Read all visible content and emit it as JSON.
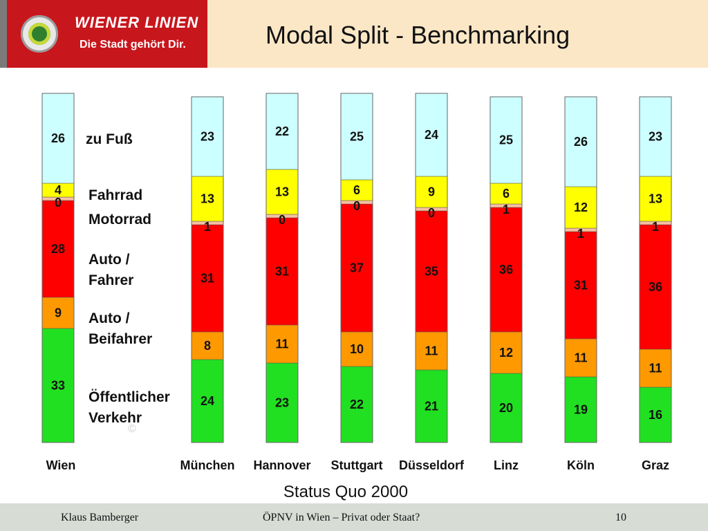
{
  "header": {
    "brand": "WIENER LINIEN",
    "slogan": "Die Stadt gehört Dir.",
    "title": "Modal Split - Benchmarking"
  },
  "chart_data": {
    "type": "bar",
    "stacked": true,
    "title": "Modal Split - Benchmarking",
    "subtitle": "Status Quo 2000",
    "categories": [
      "Wien",
      "München",
      "Hannover",
      "Stuttgart",
      "Düsseldorf",
      "Linz",
      "Köln",
      "Graz"
    ],
    "series": [
      {
        "name": "Öffentlicher Verkehr",
        "color": "#21e021",
        "values": [
          33,
          24,
          23,
          22,
          21,
          20,
          19,
          16
        ]
      },
      {
        "name": "Auto / Beifahrer",
        "color": "#ff9900",
        "values": [
          9,
          8,
          11,
          10,
          11,
          12,
          11,
          11
        ]
      },
      {
        "name": "Auto / Fahrer",
        "color": "#ff0000",
        "values": [
          28,
          31,
          31,
          37,
          35,
          36,
          31,
          36
        ]
      },
      {
        "name": "Motorrad",
        "color": "#f8c0a0",
        "values": [
          0,
          1,
          0,
          0,
          0,
          1,
          1,
          1
        ]
      },
      {
        "name": "Fahrrad",
        "color": "#ffff00",
        "values": [
          4,
          13,
          13,
          6,
          9,
          6,
          12,
          13
        ]
      },
      {
        "name": "zu Fuß",
        "color": "#ccffff",
        "values": [
          26,
          23,
          22,
          25,
          24,
          25,
          26,
          23
        ]
      }
    ],
    "legend_placement": "inline-right-of-first-bar",
    "legend_labels": [
      "zu Fuß",
      "Fahrrad",
      "Motorrad",
      "Auto /\nFahrer",
      "Auto /\nBeifahrer",
      "Öffentlicher\nVerkehr"
    ]
  },
  "watermark": "©",
  "footer": {
    "author": "Klaus Bamberger",
    "topic": "ÖPNV in Wien – Privat oder Staat?",
    "page": "10"
  }
}
